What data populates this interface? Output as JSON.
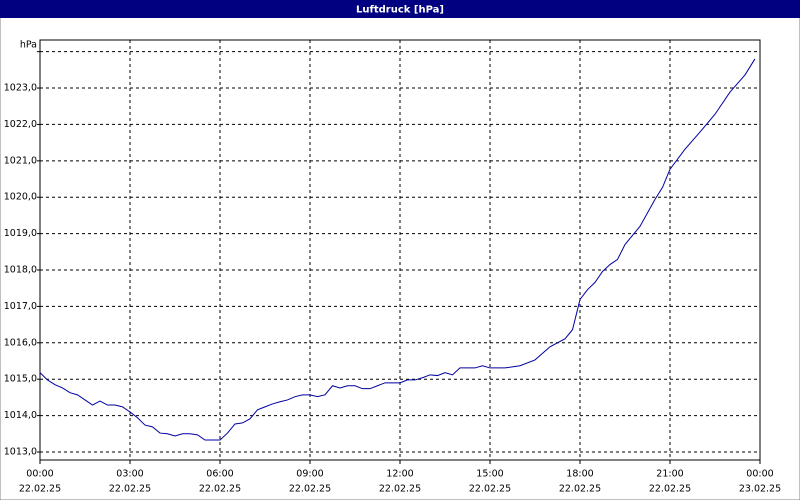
{
  "chart_data": {
    "type": "line",
    "title": "Luftdruck [hPa]",
    "y_label": "hPa",
    "xlim": [
      0,
      24
    ],
    "ylim": [
      1012.78,
      1024.32
    ],
    "grid": true,
    "grid_style": "dashed",
    "xticks": [
      {
        "value": 0,
        "label": [
          "00:00",
          "22.02.25"
        ]
      },
      {
        "value": 3,
        "label": [
          "03:00",
          "22.02.25"
        ]
      },
      {
        "value": 6,
        "label": [
          "06:00",
          "22.02.25"
        ]
      },
      {
        "value": 9,
        "label": [
          "09:00",
          "22.02.25"
        ]
      },
      {
        "value": 12,
        "label": [
          "12:00",
          "22.02.25"
        ]
      },
      {
        "value": 15,
        "label": [
          "15:00",
          "22.02.25"
        ]
      },
      {
        "value": 18,
        "label": [
          "18:00",
          "22.02.25"
        ]
      },
      {
        "value": 21,
        "label": [
          "21:00",
          "22.02.25"
        ]
      },
      {
        "value": 24,
        "label": [
          "00:00",
          "23.02.25"
        ]
      }
    ],
    "yticks": [
      {
        "value": 1013,
        "label": "1013,0"
      },
      {
        "value": 1014,
        "label": "1014,0"
      },
      {
        "value": 1015,
        "label": "1015,0"
      },
      {
        "value": 1016,
        "label": "1016,0"
      },
      {
        "value": 1017,
        "label": "1017,0"
      },
      {
        "value": 1018,
        "label": "1018,0"
      },
      {
        "value": 1019,
        "label": "1019,0"
      },
      {
        "value": 1020,
        "label": "1020,0"
      },
      {
        "value": 1021,
        "label": "1021,0"
      },
      {
        "value": 1022,
        "label": "1022,0"
      },
      {
        "value": 1023,
        "label": "1023,0"
      },
      {
        "value": 1024,
        "label": null
      }
    ],
    "series": [
      {
        "color": "#0000a0",
        "x": [
          0,
          0.25,
          0.5,
          0.75,
          1,
          1.25,
          1.5,
          1.75,
          2,
          2.25,
          2.5,
          2.75,
          3,
          3.25,
          3.5,
          3.75,
          4,
          4.25,
          4.5,
          4.75,
          5,
          5.25,
          5.5,
          5.75,
          6,
          6.25,
          6.5,
          6.75,
          7,
          7.25,
          7.5,
          7.75,
          8,
          8.25,
          8.5,
          8.75,
          9,
          9.25,
          9.5,
          9.75,
          10,
          10.25,
          10.5,
          10.75,
          11,
          11.25,
          11.5,
          11.75,
          12,
          12.25,
          12.5,
          12.75,
          13,
          13.25,
          13.5,
          13.75,
          14,
          14.25,
          14.5,
          14.75,
          15,
          15.5,
          16,
          16.5,
          17,
          17.5,
          17.75,
          18,
          18.25,
          18.5,
          18.75,
          19,
          19.25,
          19.5,
          20,
          20.5,
          20.75,
          21,
          21.5,
          22,
          22.5,
          23,
          23.5,
          23.83
        ],
        "values": [
          1015.18,
          1014.98,
          1014.85,
          1014.76,
          1014.63,
          1014.57,
          1014.43,
          1014.29,
          1014.4,
          1014.29,
          1014.29,
          1014.24,
          1014.1,
          1013.94,
          1013.74,
          1013.69,
          1013.52,
          1013.5,
          1013.44,
          1013.5,
          1013.5,
          1013.47,
          1013.33,
          1013.33,
          1013.33,
          1013.52,
          1013.77,
          1013.8,
          1013.91,
          1014.16,
          1014.24,
          1014.32,
          1014.38,
          1014.43,
          1014.52,
          1014.57,
          1014.57,
          1014.52,
          1014.57,
          1014.82,
          1014.76,
          1014.82,
          1014.82,
          1014.74,
          1014.74,
          1014.82,
          1014.9,
          1014.9,
          1014.9,
          1014.98,
          1014.98,
          1015.04,
          1015.12,
          1015.1,
          1015.18,
          1015.12,
          1015.31,
          1015.31,
          1015.31,
          1015.37,
          1015.31,
          1015.31,
          1015.37,
          1015.53,
          1015.89,
          1016.11,
          1016.36,
          1017.19,
          1017.46,
          1017.66,
          1017.96,
          1018.15,
          1018.29,
          1018.7,
          1019.2,
          1019.94,
          1020.27,
          1020.77,
          1021.32,
          1021.79,
          1022.28,
          1022.89,
          1023.36,
          1023.8
        ]
      }
    ]
  }
}
